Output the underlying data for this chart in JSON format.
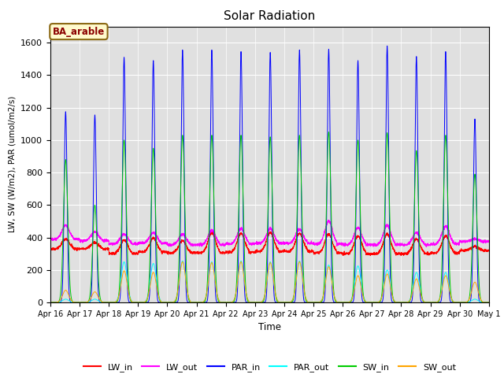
{
  "title": "Solar Radiation",
  "xlabel": "Time",
  "ylabel": "LW, SW (W/m2), PAR (umol/m2/s)",
  "annotation": "BA_arable",
  "annotation_color": "#8B0000",
  "annotation_bg": "#FFFACD",
  "annotation_border": "#8B6914",
  "ylim": [
    0,
    1700
  ],
  "yticks": [
    0,
    200,
    400,
    600,
    800,
    1000,
    1200,
    1400,
    1600
  ],
  "background_color": "#E0E0E0",
  "grid_color": "white",
  "line_colors": {
    "LW_in": "#FF0000",
    "LW_out": "#FF00FF",
    "PAR_in": "#0000FF",
    "PAR_out": "#00FFFF",
    "SW_in": "#00CC00",
    "SW_out": "#FFA500"
  },
  "n_days": 15,
  "xtick_labels": [
    "Apr 16",
    "Apr 17",
    "Apr 18",
    "Apr 19",
    "Apr 20",
    "Apr 21",
    "Apr 22",
    "Apr 23",
    "Apr 24",
    "Apr 25",
    "Apr 26",
    "Apr 27",
    "Apr 28",
    "Apr 29",
    "Apr 30",
    "May 1"
  ],
  "PAR_in_peaks": [
    1175,
    1155,
    1510,
    1490,
    1555,
    1555,
    1545,
    1540,
    1555,
    1560,
    1490,
    1580,
    1515,
    1545,
    1130
  ],
  "SW_in_peaks": [
    880,
    600,
    1000,
    950,
    1030,
    1030,
    1030,
    1020,
    1030,
    1050,
    1000,
    1045,
    935,
    1030,
    790
  ],
  "SW_out_peaks": [
    75,
    65,
    195,
    185,
    250,
    245,
    250,
    245,
    250,
    220,
    165,
    175,
    145,
    165,
    125
  ],
  "PAR_out_peaks": [
    20,
    20,
    250,
    240,
    255,
    250,
    255,
    250,
    255,
    230,
    225,
    200,
    185,
    185,
    20
  ],
  "LW_in_base": [
    330,
    330,
    300,
    310,
    305,
    305,
    310,
    315,
    315,
    305,
    300,
    300,
    300,
    305,
    320
  ],
  "LW_in_peaks": [
    390,
    370,
    385,
    395,
    380,
    430,
    425,
    430,
    425,
    420,
    410,
    420,
    390,
    410,
    345
  ],
  "LW_out_base": [
    390,
    380,
    360,
    365,
    355,
    355,
    360,
    365,
    365,
    360,
    355,
    355,
    355,
    360,
    375
  ],
  "LW_out_peaks": [
    475,
    435,
    420,
    430,
    420,
    445,
    455,
    455,
    450,
    500,
    460,
    475,
    430,
    470,
    390
  ]
}
